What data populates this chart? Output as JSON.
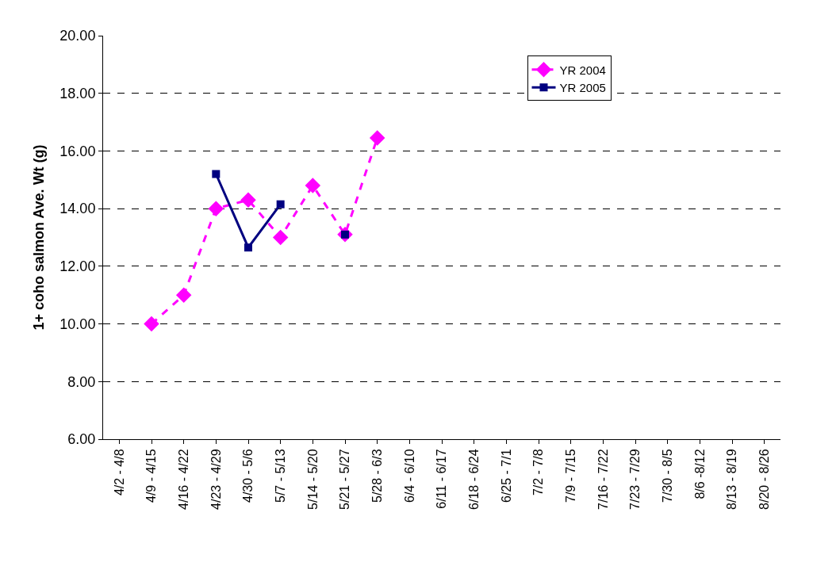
{
  "chart_data": {
    "type": "line",
    "ylabel": "1+ coho salmon Ave. Wt (g)",
    "categories": [
      "4/2 - 4/8",
      "4/9 - 4/15",
      "4/16 - 4/22",
      "4/23 - 4/29",
      "4/30 - 5/6",
      "5/7 - 5/13",
      "5/14 - 5/20",
      "5/21 - 5/27",
      "5/28 - 6/3",
      "6/4 - 6/10",
      "6/11 - 6/17",
      "6/18 - 6/24",
      "6/25 - 7/1",
      "7/2 - 7/8",
      "7/9 - 7/15",
      "7/16 - 7/22",
      "7/23 - 7/29",
      "7/30 - 8/5",
      "8/6 -8/12",
      "8/13 - 8/19",
      "8/20 - 8/26"
    ],
    "series": [
      {
        "name": "YR 2004",
        "color": "#ff00ff",
        "marker": "diamond",
        "line_style": "dashed",
        "values": [
          null,
          10.0,
          11.0,
          14.0,
          14.3,
          13.0,
          14.8,
          13.1,
          16.45,
          null,
          null,
          null,
          null,
          null,
          null,
          null,
          null,
          null,
          null,
          null,
          null
        ]
      },
      {
        "name": "YR 2005",
        "color": "#000080",
        "marker": "square",
        "line_style": "solid",
        "values": [
          null,
          null,
          null,
          15.2,
          12.65,
          14.15,
          null,
          13.1,
          null,
          null,
          null,
          null,
          null,
          null,
          null,
          null,
          null,
          null,
          null,
          null,
          null
        ]
      }
    ],
    "ylim": [
      6,
      20
    ],
    "yticks": [
      {
        "value": 6,
        "label": "6.00"
      },
      {
        "value": 8,
        "label": "8.00"
      },
      {
        "value": 10,
        "label": "10.00"
      },
      {
        "value": 12,
        "label": "12.00"
      },
      {
        "value": 14,
        "label": "14.00"
      },
      {
        "value": 16,
        "label": "16.00"
      },
      {
        "value": 18,
        "label": "18.00"
      },
      {
        "value": 20,
        "label": "20.00"
      }
    ],
    "grid": "y",
    "legend": "top right"
  }
}
